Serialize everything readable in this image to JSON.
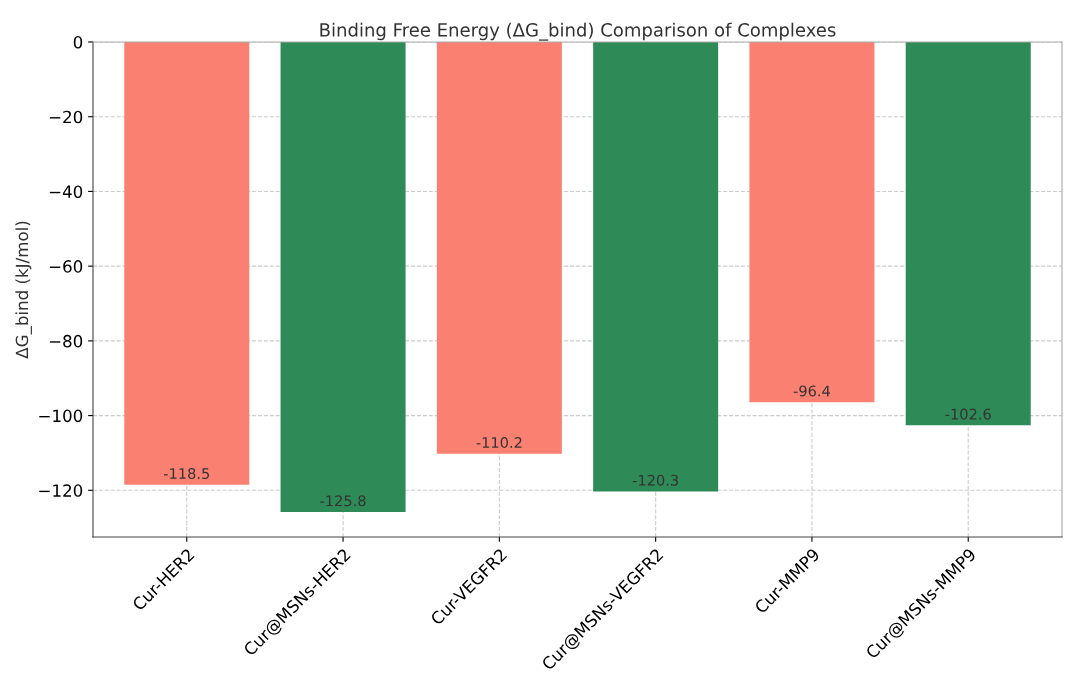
{
  "chart_data": {
    "type": "bar",
    "title": "Binding Free Energy (ΔG_bind) Comparison of Complexes",
    "ylabel": "ΔG_bind (kJ/mol)",
    "categories": [
      "Cur-HER2",
      "Cur@MSNs-HER2",
      "Cur-VEGFR2",
      "Cur@MSNs-VEGFR2",
      "Cur-MMP9",
      "Cur@MSNs-MMP9"
    ],
    "values": [
      -118.5,
      -125.8,
      -110.2,
      -120.3,
      -96.4,
      -102.6
    ],
    "colors": [
      "#fa8072",
      "#2e8b57",
      "#fa8072",
      "#2e8b57",
      "#fa8072",
      "#2e8b57"
    ],
    "ylim": [
      -132.5,
      0
    ],
    "yticks": [
      {
        "value": 0,
        "label": "0"
      },
      {
        "value": -20,
        "label": "−20"
      },
      {
        "value": -40,
        "label": "−40"
      },
      {
        "value": -60,
        "label": "−60"
      },
      {
        "value": -80,
        "label": "−80"
      },
      {
        "value": -100,
        "label": "−100"
      },
      {
        "value": -120,
        "label": "−120"
      }
    ],
    "grid": true,
    "data_labels": true
  }
}
